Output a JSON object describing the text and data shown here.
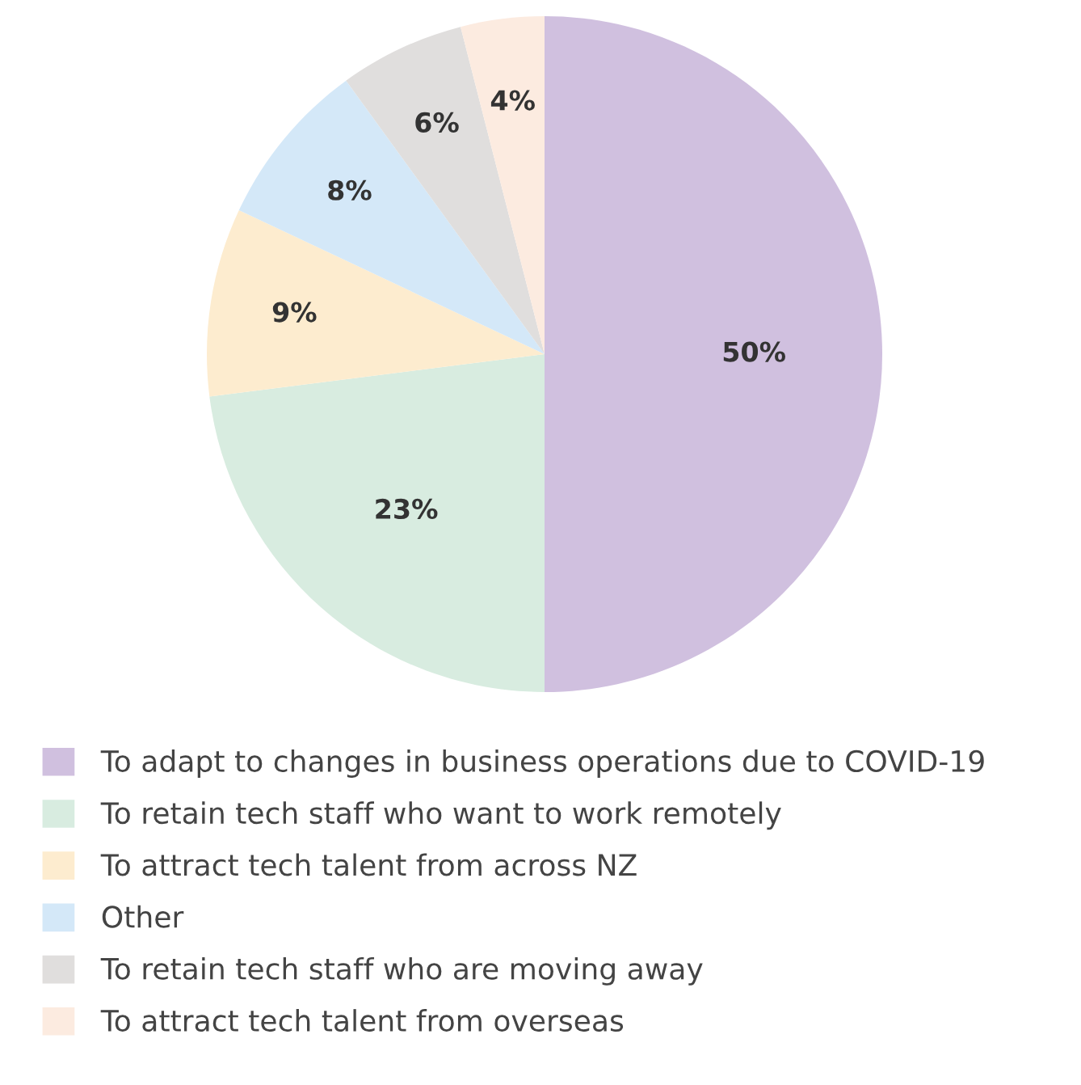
{
  "chart_data": {
    "type": "pie",
    "categories": [
      "To adapt to changes in business operations due to COVID-19",
      "To retain tech staff who want to work remotely",
      "To attract tech talent from across NZ",
      "Other",
      "To retain tech staff who are moving away",
      "To attract tech talent from overseas"
    ],
    "values": [
      50,
      23,
      9,
      8,
      6,
      4
    ],
    "colors": [
      "#d0c0df",
      "#d8ece0",
      "#fdeccf",
      "#d4e8f8",
      "#e0dedd",
      "#fcebe0"
    ],
    "value_labels": [
      "50%",
      "23%",
      "9%",
      "8%",
      "6%",
      "4%"
    ],
    "legend": "bottom"
  }
}
